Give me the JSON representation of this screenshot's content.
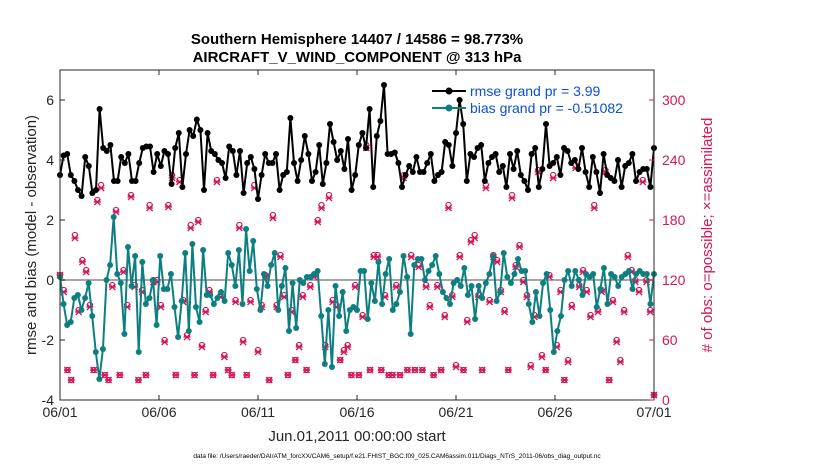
{
  "chart_data": {
    "type": "line",
    "title": "Southern Hemisphere 14407 / 14586 = 98.773%",
    "subtitle": "AIRCRAFT_V_WIND_COMPONENT @ 313 hPa",
    "xlabel": "Jun.01,2011 00:00:00 start",
    "ylabel_left": "rmse and bias (model - observation)",
    "ylabel_right": "# of obs: o=possible; ×=assimilated",
    "x_ticks": [
      "06/01",
      "06/06",
      "06/11",
      "06/16",
      "06/21",
      "06/26",
      "07/01"
    ],
    "xlim": [
      0,
      30
    ],
    "ylim_left": [
      -4,
      7
    ],
    "y_ticks_left": [
      "-4",
      "-2",
      "0",
      "2",
      "4",
      "6"
    ],
    "ylim_right": [
      0,
      330
    ],
    "y_ticks_right": [
      "0",
      "60",
      "120",
      "180",
      "240",
      "300"
    ],
    "legend_position": "top-right",
    "footnote": "data file: /Users/raeder/DAI/ATM_forcXX/CAM6_setup/f.e21.FHIST_BGC.f09_025.CAM6assim.011/Diags_NTrS_2011-06/obs_diag_output.nc",
    "colors": {
      "rmse": "#000000",
      "bias": "#0e7f80",
      "obs": "#d6155a",
      "right_axis": "#d6155a",
      "zero_line": "#a6a6a6",
      "legend_text": "#0b4fd6"
    },
    "series": [
      {
        "name": "rmse grand pr = 3.99",
        "axis": "left",
        "values": [
          3.5,
          4.15,
          4.2,
          3.5,
          3.3,
          3.0,
          2.8,
          4.1,
          3.8,
          2.9,
          3.0,
          5.7,
          4.4,
          4.3,
          4.5,
          3.3,
          3.3,
          4.1,
          3.9,
          4.2,
          3.3,
          3.3,
          3.9,
          4.4,
          4.45,
          4.45,
          3.6,
          4.2,
          3.8,
          4.3,
          4.2,
          3.2,
          4.4,
          4.9,
          3.1,
          4.2,
          5.0,
          4.8,
          5.35,
          5.0,
          3.0,
          4.9,
          4.3,
          4.2,
          4.0,
          3.9,
          3.4,
          4.45,
          4.3,
          3.5,
          4.3,
          2.9,
          3.9,
          4.1,
          3.7,
          2.7,
          3.5,
          4.2,
          3.9,
          3.9,
          4.2,
          3.0,
          3.5,
          3.6,
          5.4,
          3.9,
          3.3,
          4.0,
          4.8,
          4.2,
          3.3,
          3.6,
          4.5,
          3.2,
          3.9,
          5.2,
          4.6,
          4.0,
          4.3,
          3.7,
          4.7,
          3.0,
          3.5,
          4.5,
          4.9,
          4.4,
          5.7,
          3.1,
          4.8,
          5.3,
          6.5,
          4.2,
          4.2,
          4.25,
          3.9,
          3.1,
          3.5,
          3.8,
          3.6,
          4.1,
          3.6,
          3.6,
          3.9,
          4.2,
          3.3,
          3.5,
          3.6,
          4.6,
          4.5,
          3.8,
          4.9,
          6.0,
          5.2,
          3.3,
          4.2,
          4.1,
          4.4,
          4.5,
          3.3,
          3.9,
          4.1,
          4.2,
          3.6,
          3.8,
          3.1,
          4.2,
          3.7,
          4.3,
          3.5,
          3.3,
          3.0,
          4.2,
          4.4,
          3.1,
          3.7,
          5.2,
          3.8,
          3.9,
          4.1,
          3.5,
          4.4,
          4.3,
          3.9,
          4.0,
          3.7,
          4.4,
          3.6,
          3.1,
          4.1,
          3.6,
          2.9,
          4.2,
          3.5,
          3.4,
          3.3,
          4.0,
          3.1,
          3.8,
          3.9,
          4.2,
          3.3,
          3.6,
          3.7,
          3.7,
          3.1,
          4.4
        ]
      },
      {
        "name": "bias grand pr = -0.51082",
        "axis": "left",
        "values": [
          0.1,
          -0.8,
          -1.5,
          -1.4,
          -0.6,
          -0.5,
          -1.0,
          -0.6,
          -0.1,
          -1.2,
          -2.4,
          -3.3,
          -2.3,
          0.0,
          0.5,
          2.1,
          0.2,
          -0.1,
          -1.8,
          1.1,
          -0.2,
          0.8,
          -2.4,
          0.6,
          -0.8,
          -0.6,
          0.0,
          -1.5,
          0.8,
          -0.3,
          -0.3,
          0.2,
          -0.9,
          -1.9,
          -0.7,
          0.9,
          -1.7,
          1.2,
          -0.9,
          -1.4,
          1.0,
          -0.5,
          -0.5,
          -0.8,
          -0.6,
          -0.4,
          -0.7,
          0.9,
          0.5,
          -0.2,
          1.0,
          -0.8,
          1.7,
          0.3,
          1.3,
          -0.3,
          -1.0,
          0.2,
          -0.2,
          0.5,
          0.9,
          -1.0,
          -0.2,
          0.4,
          -1.7,
          -0.1,
          -1.6,
          0.0,
          -0.1,
          0.1,
          0.1,
          0.2,
          0.3,
          -1.2,
          -2.8,
          -1.0,
          -2.9,
          -0.2,
          -1.2,
          -0.4,
          -1.7,
          -1.0,
          -0.9,
          -1.0,
          0.3,
          0.3,
          -1.3,
          -0.1,
          -0.7,
          0.6,
          -0.8,
          0.2,
          0.7,
          -1.0,
          -0.8,
          -0.4,
          0.8,
          0.1,
          -1.8,
          0.5,
          0.7,
          0.7,
          0.0,
          0.3,
          0.5,
          0.8,
          0.2,
          -0.4,
          -0.6,
          -0.8,
          -0.1,
          0.0,
          -0.2,
          0.4,
          -0.5,
          -0.2,
          -1.3,
          -0.2,
          -0.6,
          -0.1,
          0.2,
          0.8,
          -0.7,
          -0.4,
          0.9,
          0.1,
          -0.1,
          0.2,
          0.7,
          0.3,
          0.3,
          -0.8,
          -1.4,
          -0.4,
          -1.2,
          -0.1,
          0.2,
          -1.0,
          -2.4,
          -1.7,
          -1.2,
          0.0,
          0.3,
          -0.2,
          0.3,
          0.0,
          -0.5,
          0.2,
          0.1,
          0.2,
          -0.9,
          -0.3,
          0.4,
          -0.8,
          0.2,
          0.1,
          -0.2,
          0.1,
          0.2,
          0.3,
          -0.3,
          0.2,
          0.3,
          0.2,
          0.2,
          -0.8,
          0.2
        ]
      },
      {
        "name": "obs possible",
        "axis": "right",
        "marker": "circle",
        "values": [
          125,
          110,
          30,
          20,
          165,
          90,
          140,
          130,
          95,
          30,
          200,
          215,
          25,
          20,
          115,
          190,
          25,
          130,
          95,
          205,
          115,
          20,
          110,
          25,
          195,
          120,
          120,
          95,
          60,
          195,
          225,
          25,
          220,
          100,
          65,
          175,
          25,
          180,
          55,
          90,
          110,
          25,
          220,
          105,
          45,
          30,
          25,
          100,
          175,
          60,
          25,
          100,
          215,
          50,
          95,
          125,
          20,
          185,
          95,
          145,
          105,
          25,
          90,
          40,
          55,
          105,
          30,
          115,
          125,
          180,
          195,
          55,
          205,
          100,
          95,
          40,
          50,
          55,
          25,
          115,
          25,
          85,
          255,
          30,
          145,
          145,
          30,
          105,
          25,
          25,
          115,
          25,
          225,
          30,
          145,
          30,
          135,
          30,
          115,
          95,
          25,
          115,
          30,
          85,
          195,
          105,
          35,
          145,
          30,
          80,
          160,
          165,
          105,
          30,
          215,
          100,
          145,
          140,
          110,
          90,
          30,
          205,
          135,
          155,
          120,
          105,
          35,
          85,
          230,
          45,
          30,
          125,
          225,
          55,
          110,
          20,
          40,
          95,
          235,
          115,
          130,
          110,
          85,
          195,
          90,
          110,
          230,
          20,
          100,
          60,
          40,
          90,
          145,
          130,
          120,
          110,
          220,
          120,
          90,
          5
        ]
      },
      {
        "name": "obs assimilated",
        "axis": "right",
        "marker": "x",
        "values": [
          125,
          108,
          30,
          20,
          162,
          88,
          138,
          128,
          93,
          30,
          198,
          212,
          25,
          20,
          113,
          188,
          25,
          128,
          93,
          203,
          113,
          20,
          108,
          25,
          192,
          118,
          118,
          93,
          58,
          193,
          222,
          25,
          218,
          98,
          63,
          172,
          25,
          178,
          53,
          88,
          108,
          25,
          218,
          103,
          43,
          30,
          25,
          98,
          172,
          58,
          25,
          98,
          212,
          48,
          93,
          123,
          20,
          182,
          93,
          143,
          103,
          25,
          88,
          40,
          53,
          103,
          30,
          113,
          123,
          178,
          192,
          53,
          202,
          98,
          93,
          40,
          48,
          53,
          25,
          113,
          25,
          83,
          252,
          30,
          143,
          143,
          30,
          103,
          25,
          25,
          113,
          25,
          222,
          30,
          143,
          30,
          133,
          30,
          113,
          93,
          25,
          113,
          30,
          83,
          192,
          103,
          33,
          143,
          30,
          78,
          158,
          162,
          103,
          30,
          212,
          98,
          143,
          138,
          108,
          88,
          30,
          202,
          133,
          153,
          118,
          103,
          33,
          83,
          228,
          43,
          30,
          123,
          222,
          53,
          108,
          20,
          38,
          93,
          232,
          113,
          128,
          108,
          83,
          192,
          88,
          108,
          228,
          20,
          98,
          58,
          38,
          88,
          143,
          128,
          118,
          108,
          218,
          118,
          88,
          5
        ]
      }
    ]
  }
}
